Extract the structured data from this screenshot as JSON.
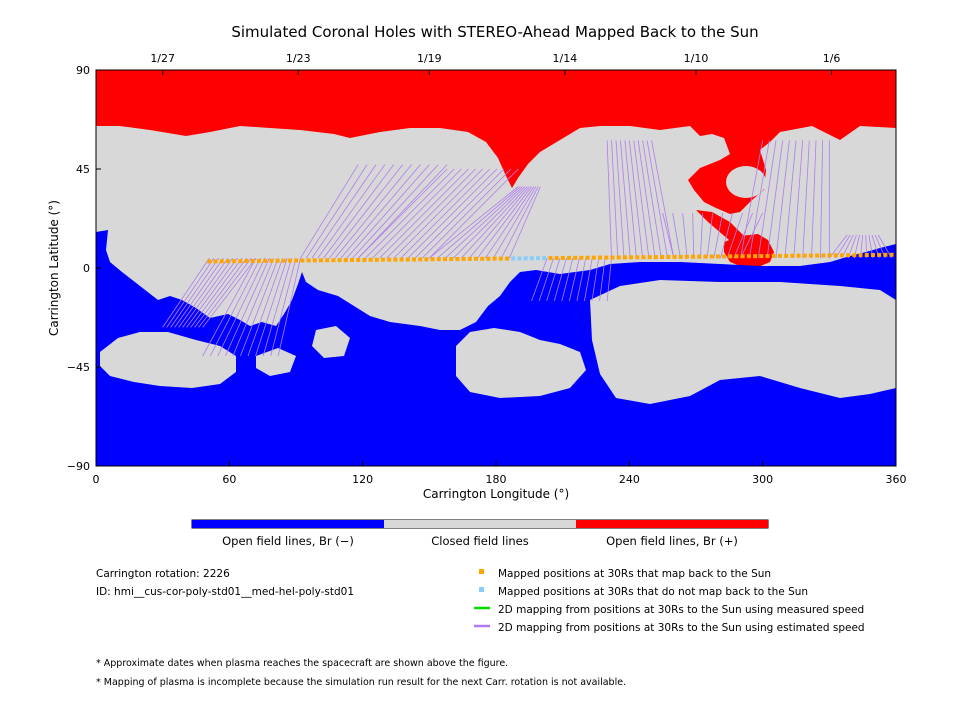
{
  "chart_data": {
    "type": "map",
    "title": "Simulated Coronal Holes with STEREO-Ahead Mapped Back to the Sun",
    "xlabel": "Carrington Longitude (°)",
    "ylabel": "Carrington Latitude (°)",
    "xlim": [
      0,
      360
    ],
    "ylim": [
      -90,
      90
    ],
    "x_ticks": [
      "0",
      "60",
      "120",
      "180",
      "240",
      "300",
      "360"
    ],
    "y_ticks": [
      "90",
      "45",
      "0",
      "−45",
      "−90"
    ],
    "top_axis": {
      "labels": [
        "1/27",
        "1/23",
        "1/19",
        "1/14",
        "1/10",
        "1/6"
      ],
      "longitudes": [
        30,
        91,
        150,
        211,
        270,
        331
      ]
    },
    "colors": {
      "positive": "#ff0000",
      "negative": "#0000ff",
      "closed": "#d8d8d8",
      "mapped": "#ffa500",
      "unmapped": "#87cefa",
      "measured": "#00dd00",
      "estimated": "#b07cf0"
    },
    "colorbar": [
      {
        "label": "Open field lines, Br (−)",
        "color": "#0000ff"
      },
      {
        "label": "Closed field lines",
        "color": "#d8d8d8"
      },
      {
        "label": "Open field lines, Br (+)",
        "color": "#ff0000"
      }
    ],
    "series": [
      {
        "name": "Mapped positions at 30Rs that map back to the Sun",
        "lon_range": [
          51,
          358
        ],
        "lat_range": [
          3,
          6
        ]
      },
      {
        "name": "Mapped positions at 30Rs that do not map back to the Sun",
        "lon_range": [
          186,
          203
        ],
        "lat_range": [
          4,
          4
        ]
      }
    ],
    "legend": [
      {
        "label": "Mapped positions at 30Rs that map back to the Sun",
        "color": "#ffa500",
        "kind": "square"
      },
      {
        "label": "Mapped positions at 30Rs that do not map back to the Sun",
        "color": "#87cefa",
        "kind": "square"
      },
      {
        "label": "2D mapping from positions at 30Rs to the Sun using measured speed",
        "color": "#00dd00",
        "kind": "line"
      },
      {
        "label": "2D mapping from positions at 30Rs to the Sun using estimated speed",
        "color": "#b07cf0",
        "kind": "line"
      }
    ]
  },
  "info": {
    "rotation": "Carrington rotation: 2226",
    "id": "ID: hmi__cus-cor-poly-std01__med-hel-poly-std01"
  },
  "notes": [
    "* Approximate dates when plasma reaches the spacecraft are shown above the figure.",
    "* Mapping of plasma is incomplete because the simulation run result for the next Carr. rotation is not available."
  ]
}
